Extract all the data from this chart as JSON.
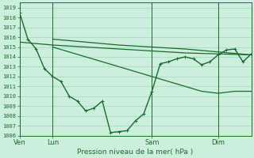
{
  "title": "Pression niveau de la mer( hPa )",
  "background_color": "#cceedd",
  "grid_color": "#99ccbb",
  "line_color": "#1a6b2a",
  "ylim": [
    1006,
    1019.5
  ],
  "xlim": [
    0,
    168
  ],
  "yticks": [
    1006,
    1007,
    1008,
    1009,
    1010,
    1011,
    1012,
    1013,
    1014,
    1015,
    1016,
    1017,
    1018,
    1019
  ],
  "day_labels": [
    "Ven",
    "Lun",
    "Sam",
    "Dim"
  ],
  "day_positions": [
    0,
    24,
    96,
    144
  ],
  "series": [
    {
      "x": [
        0,
        6,
        12,
        18,
        24,
        30,
        36,
        42,
        48,
        54,
        60,
        66,
        72,
        78,
        84,
        90,
        96,
        102,
        108,
        114,
        120,
        126,
        132,
        138,
        144,
        150,
        156,
        162,
        168
      ],
      "y": [
        1018.5,
        1015.8,
        1014.8,
        1012.8,
        1012.0,
        1011.5,
        1010.0,
        1009.5,
        1008.5,
        1008.8,
        1009.5,
        1006.3,
        1006.4,
        1006.5,
        1007.5,
        1008.2,
        1010.5,
        1013.3,
        1013.5,
        1013.8,
        1014.0,
        1013.8,
        1013.2,
        1013.5,
        1014.2,
        1014.7,
        1014.8,
        1013.5,
        1014.3
      ],
      "marker": "+",
      "linewidth": 1.0,
      "markersize": 3.5
    },
    {
      "x": [
        0,
        24,
        48,
        72,
        96,
        120,
        144,
        168
      ],
      "y": [
        1015.5,
        1015.2,
        1015.0,
        1014.8,
        1014.6,
        1014.4,
        1014.3,
        1014.2
      ],
      "marker": null,
      "linewidth": 0.9,
      "markersize": 0
    },
    {
      "x": [
        24,
        48,
        72,
        96,
        120,
        144,
        168
      ],
      "y": [
        1015.8,
        1015.5,
        1015.2,
        1015.0,
        1014.8,
        1014.5,
        1014.2
      ],
      "marker": null,
      "linewidth": 0.9,
      "markersize": 0
    },
    {
      "x": [
        24,
        36,
        48,
        60,
        72,
        84,
        96,
        108,
        120,
        132,
        144,
        156,
        168
      ],
      "y": [
        1015.0,
        1014.5,
        1014.0,
        1013.5,
        1013.0,
        1012.5,
        1012.0,
        1011.5,
        1011.0,
        1010.5,
        1010.3,
        1010.5,
        1010.5
      ],
      "marker": null,
      "linewidth": 0.9,
      "markersize": 0
    }
  ]
}
